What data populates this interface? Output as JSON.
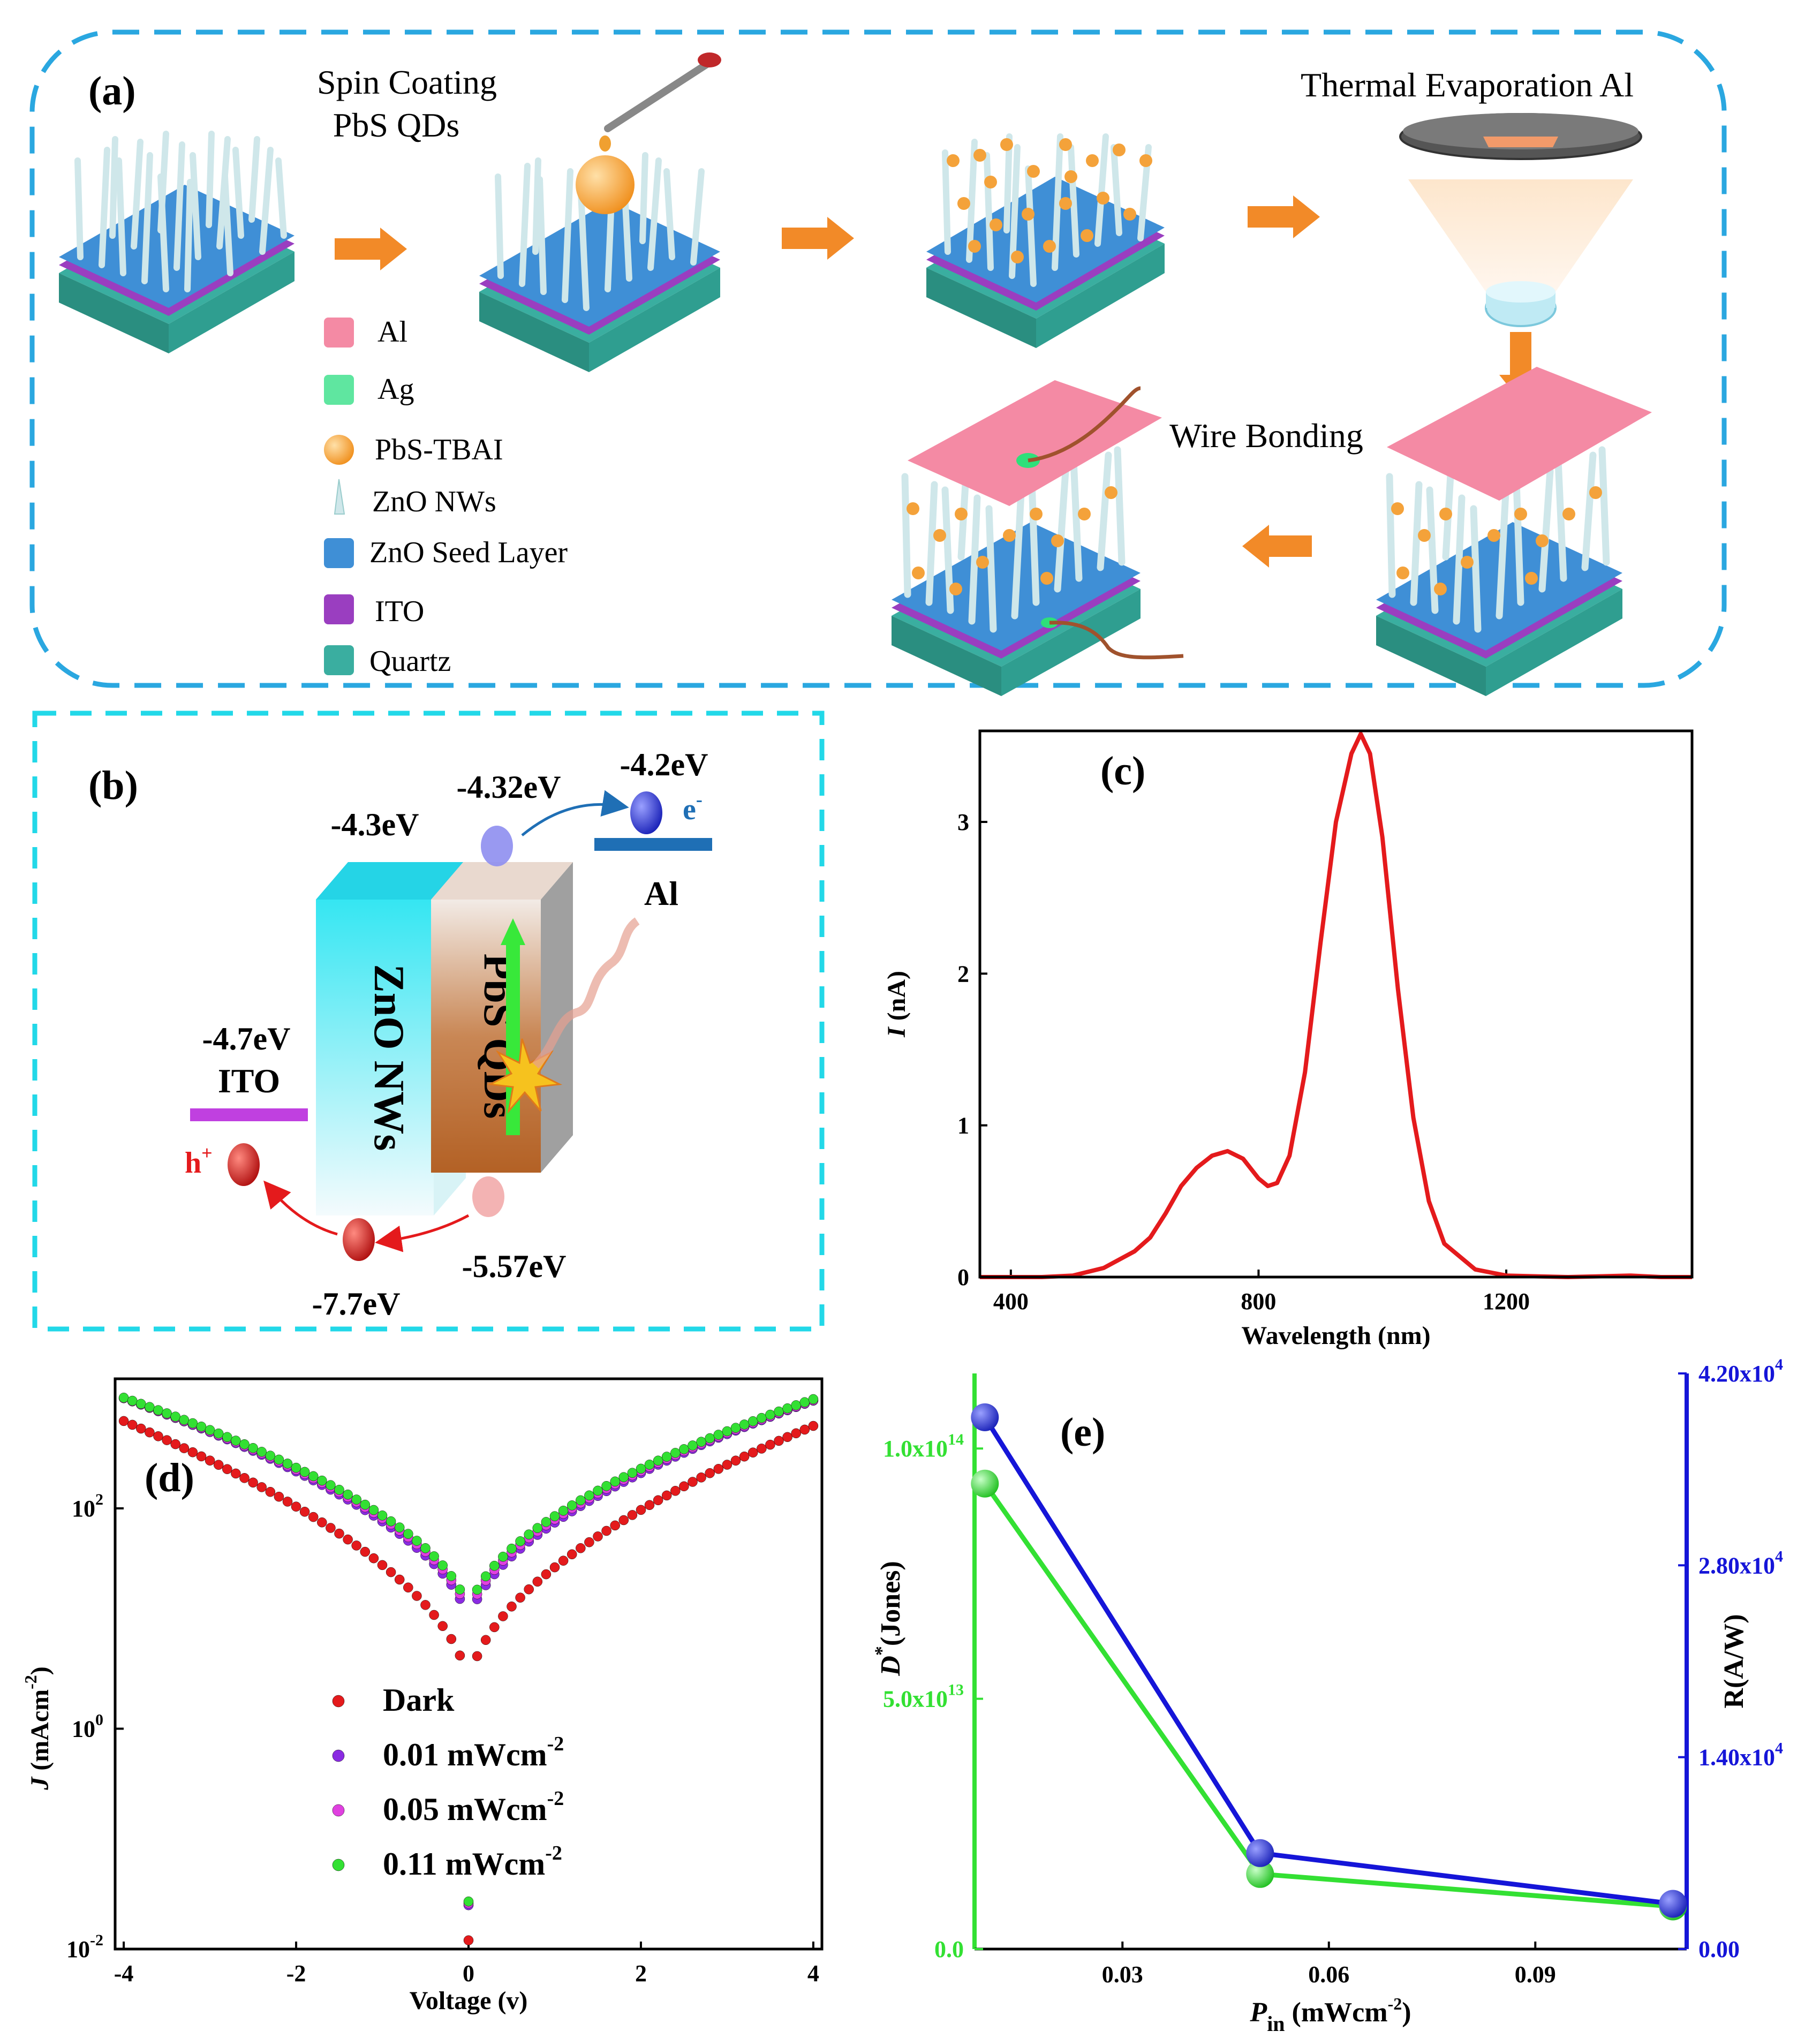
{
  "panel_a": {
    "label": "(a)",
    "step1": [
      "Spin Coating",
      "PbS QDs"
    ],
    "step2": "Thermal Evaporation Al",
    "step3": "Wire Bonding",
    "legend": [
      "Al",
      "Ag",
      "PbS-TBAI",
      "ZnO NWs",
      "ZnO Seed Layer",
      "ITO",
      "Quartz"
    ]
  },
  "panel_b": {
    "label": "(b)",
    "zno": "ZnO NWs",
    "pbs": "PbS QDs",
    "al": "Al",
    "ito": "ITO",
    "e_label": "e",
    "e_sup": "-",
    "h_label": "h",
    "h_sup": "+",
    "levels": {
      "zno_cb": "-4.3eV",
      "pbs_cb": "-4.32eV",
      "al": "-4.2eV",
      "ito": "-4.7eV",
      "pbs_vb": "-5.57eV",
      "zno_vb": "-7.7eV"
    }
  },
  "colors": {
    "red": "#e41a1c",
    "blue": "#1515d8",
    "green": "#33e033",
    "purple": "#8a2be2",
    "magenta": "#e040e0",
    "frame": "#2aa7e0",
    "frame_b": "#22d8e8"
  },
  "chart_data": [
    {
      "panel": "(c)",
      "type": "line",
      "xlabel": "Wavelength (nm)",
      "ylabel_main": "I",
      "ylabel_unit": " (nA)",
      "xlim": [
        350,
        1500
      ],
      "ylim": [
        0,
        3.6
      ],
      "xticks": [
        400,
        800,
        1200
      ],
      "yticks": [
        0,
        1,
        2,
        3
      ],
      "series": [
        {
          "name": "photocurrent",
          "x": [
            350,
            400,
            450,
            500,
            550,
            600,
            625,
            650,
            675,
            700,
            725,
            750,
            775,
            800,
            815,
            830,
            850,
            875,
            900,
            925,
            950,
            965,
            980,
            1000,
            1025,
            1050,
            1075,
            1100,
            1150,
            1200,
            1300,
            1400,
            1450,
            1500
          ],
          "y": [
            0,
            0,
            0,
            0.01,
            0.06,
            0.17,
            0.26,
            0.42,
            0.6,
            0.72,
            0.8,
            0.83,
            0.78,
            0.65,
            0.6,
            0.62,
            0.8,
            1.35,
            2.2,
            3.0,
            3.45,
            3.58,
            3.45,
            2.9,
            1.9,
            1.05,
            0.5,
            0.22,
            0.05,
            0.01,
            0,
            0.01,
            0,
            0
          ]
        }
      ]
    },
    {
      "panel": "(d)",
      "type": "scatter",
      "xlabel": "Voltage (v)",
      "ylabel_main": "J",
      "ylabel_unit": " (mAcm",
      "ylabel_sup": "-2",
      "ylabel_end": ")",
      "yscale": "log",
      "xlim": [
        -4.1,
        4.1
      ],
      "ylim": [
        0.01,
        1500
      ],
      "xticks": [
        -4,
        -2,
        0,
        2,
        4
      ],
      "yticks": [
        {
          "base": "10",
          "exp": "-2"
        },
        {
          "base": "10",
          "exp": "0"
        },
        {
          "base": "10",
          "exp": "2"
        }
      ],
      "legend": [
        {
          "label": "Dark",
          "sup": ""
        },
        {
          "label": "0.01 mWcm",
          "sup": "-2"
        },
        {
          "label": "0.05 mWcm",
          "sup": "-2"
        },
        {
          "label": "0.11 mWcm",
          "sup": "-2"
        }
      ],
      "series": [
        {
          "name": "Dark",
          "color": "#e41a1c",
          "j_neg": 620,
          "j_pos": 560,
          "near": [
            2.2,
            0.012
          ]
        },
        {
          "name": "0.01 mWcm-2",
          "color": "#8a2be2",
          "j_neg": 1000,
          "j_pos": 950,
          "near": [
            8,
            0.025
          ]
        },
        {
          "name": "0.05 mWcm-2",
          "color": "#e040e0",
          "j_neg": 1000,
          "j_pos": 960,
          "near": [
            9,
            0.026
          ]
        },
        {
          "name": "0.11 mWcm-2",
          "color": "#33e033",
          "j_neg": 1010,
          "j_pos": 980,
          "near": [
            10,
            0.027
          ]
        }
      ]
    },
    {
      "panel": "(e)",
      "type": "line",
      "xlabel_main": "P",
      "xlabel_sub": "in",
      "xlabel_unit": " (mWcm",
      "xlabel_sup": "-2",
      "xlabel_end": ")",
      "ylabel_left_main": "D",
      "ylabel_left_sup": "*",
      "ylabel_left_unit": "(Jones)",
      "ylabel_right": "R(A/W)",
      "xlim": [
        0.0085,
        0.112
      ],
      "xticks": [
        0.03,
        0.06,
        0.09
      ],
      "xtick_labels": [
        "0.03",
        "0.06",
        "0.09"
      ],
      "ylim_left": [
        0,
        115000000000000.0
      ],
      "ylim_right": [
        0,
        42000
      ],
      "yticks_left": [
        {
          "v": 0,
          "t": "0.0",
          "e": ""
        },
        {
          "v": 50000000000000.0,
          "t": "5.0x10",
          "e": "13"
        },
        {
          "v": 100000000000000.0,
          "t": "1.0x10",
          "e": "14"
        }
      ],
      "yticks_right": [
        {
          "v": 0,
          "t": "0.00",
          "e": ""
        },
        {
          "v": 14000,
          "t": "1.40x10",
          "e": "4"
        },
        {
          "v": 28000,
          "t": "2.80x10",
          "e": "4"
        },
        {
          "v": 42000,
          "t": "4.20x10",
          "e": "4"
        }
      ],
      "series": [
        {
          "name": "D*",
          "axis": "left",
          "color": "#33e033",
          "x": [
            0.01,
            0.05,
            0.11
          ],
          "y": [
            93000000000000.0,
            15000000000000.0,
            8500000000000.0
          ]
        },
        {
          "name": "R",
          "axis": "right",
          "color": "#1515d8",
          "x": [
            0.01,
            0.05,
            0.11
          ],
          "y": [
            38800,
            7000,
            3300
          ]
        }
      ]
    }
  ]
}
